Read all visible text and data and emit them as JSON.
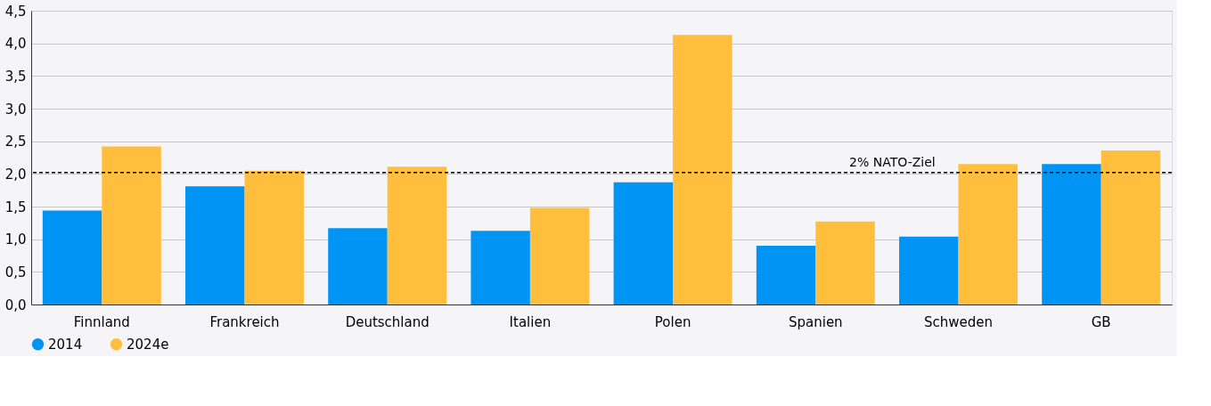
{
  "chart_data": {
    "type": "bar",
    "categories": [
      "Finnland",
      "Frankreich",
      "Deutschland",
      "Italien",
      "Polen",
      "Spanien",
      "Schweden",
      "GB"
    ],
    "series": [
      {
        "name": "2014",
        "color": "#0094f5",
        "values": [
          1.44,
          1.81,
          1.17,
          1.13,
          1.87,
          0.9,
          1.04,
          2.15
        ]
      },
      {
        "name": "2024e",
        "color": "#ffbe3c",
        "values": [
          2.42,
          2.05,
          2.11,
          1.48,
          4.13,
          1.27,
          2.15,
          2.36
        ]
      }
    ],
    "ylim": [
      0,
      4.5
    ],
    "yticks": [
      {
        "value": 0,
        "label": "0,0"
      },
      {
        "value": 0.5,
        "label": "0,5"
      },
      {
        "value": 1,
        "label": "1,0"
      },
      {
        "value": 1.5,
        "label": "1,5"
      },
      {
        "value": 2,
        "label": "2,0"
      },
      {
        "value": 2.5,
        "label": "2,5"
      },
      {
        "value": 3,
        "label": "3,0"
      },
      {
        "value": 3.5,
        "label": "3,5"
      },
      {
        "value": 4,
        "label": "4,0"
      },
      {
        "value": 4.5,
        "label": "4,5"
      }
    ],
    "ref_lines": [
      {
        "axis": "y",
        "value": 2.02,
        "label": "2% NATO-Ziel",
        "color": "#000000",
        "line_style": "dashed"
      }
    ],
    "grid": "y",
    "legend": "bottom left"
  }
}
